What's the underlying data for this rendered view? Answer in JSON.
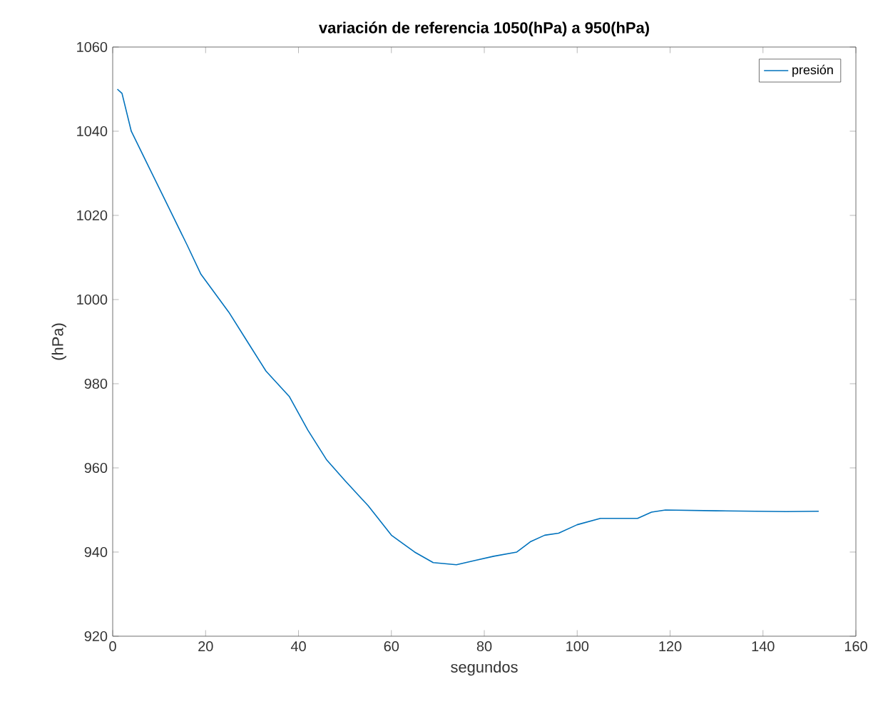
{
  "chart_data": {
    "type": "line",
    "title": "variación de referencia 1050(hPa) a 950(hPa)",
    "xlabel": "segundos",
    "ylabel": "(hPa)",
    "x": [
      1,
      2,
      4,
      8,
      12,
      16,
      19,
      23,
      25,
      29,
      33,
      38,
      42,
      46,
      50,
      55,
      60,
      65,
      69,
      74,
      78,
      82,
      87,
      90,
      93,
      96,
      100,
      105,
      113,
      116,
      119,
      130,
      145,
      152
    ],
    "series": [
      {
        "name": "presión",
        "color": "#0072bd",
        "values": [
          1050,
          1049,
          1040,
          1031,
          1022,
          1013,
          1006,
          1000,
          997,
          990,
          983,
          977,
          969,
          962,
          957,
          951,
          944,
          940,
          937.5,
          937,
          938,
          939,
          940,
          942.5,
          944,
          944.5,
          946.5,
          948,
          948,
          949.5,
          950,
          949.8,
          949.6,
          949.7
        ]
      }
    ],
    "xlim": [
      0,
      160
    ],
    "ylim": [
      920,
      1060
    ],
    "xticks": [
      0,
      20,
      40,
      60,
      80,
      100,
      120,
      140,
      160
    ],
    "yticks": [
      920,
      940,
      960,
      980,
      1000,
      1020,
      1040,
      1060
    ],
    "legend": "top right",
    "grid": false,
    "marker": "none",
    "line_style": "solid"
  }
}
